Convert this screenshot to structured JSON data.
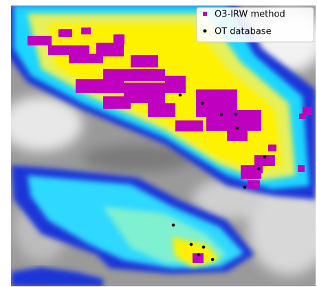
{
  "legend": {
    "items": [
      {
        "label": "O3-IRW method"
      },
      {
        "label": "OT database"
      }
    ]
  }
}
